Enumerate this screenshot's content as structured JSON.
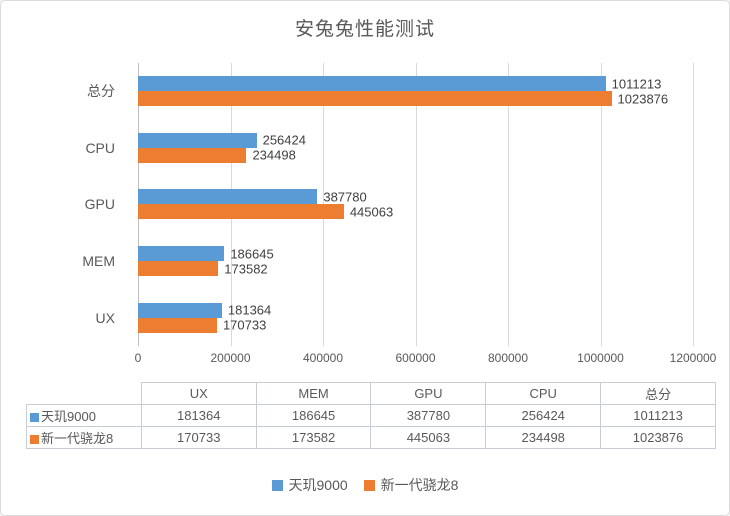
{
  "title": "安兔兔性能测试",
  "colors": {
    "series1": "#5B9BD5",
    "series2": "#ED7D31",
    "gridline": "#D9D9D9",
    "axis_text": "#595959",
    "data_label_text": "#404040",
    "table_border": "#C6CDD7"
  },
  "chart_data": {
    "type": "bar",
    "orientation": "horizontal",
    "title": "安兔兔性能测试",
    "categories": [
      "总分",
      "CPU",
      "GPU",
      "MEM",
      "UX"
    ],
    "series": [
      {
        "name": "天玑9000",
        "color": "#5B9BD5",
        "values": [
          1011213,
          256424,
          387780,
          186645,
          181364
        ]
      },
      {
        "name": "新一代骁龙8",
        "color": "#ED7D31",
        "values": [
          1023876,
          234498,
          445063,
          173582,
          170733
        ]
      }
    ],
    "xlim": [
      0,
      1200000
    ],
    "x_ticks": [
      "0",
      "200000",
      "400000",
      "600000",
      "800000",
      "1000000",
      "1200000"
    ],
    "grid": true,
    "data_labels": true,
    "legend_position": "bottom"
  },
  "table": {
    "columns": [
      "",
      "UX",
      "MEM",
      "GPU",
      "CPU",
      "总分"
    ],
    "rows": [
      {
        "label": "天玑9000",
        "marker_color": "#5B9BD5",
        "values": [
          "181364",
          "186645",
          "387780",
          "256424",
          "1011213"
        ]
      },
      {
        "label": "新一代骁龙8",
        "marker_color": "#ED7D31",
        "values": [
          "170733",
          "173582",
          "445063",
          "234498",
          "1023876"
        ]
      }
    ]
  },
  "legend": {
    "items": [
      {
        "label": "天玑9000",
        "color": "#5B9BD5"
      },
      {
        "label": "新一代骁龙8",
        "color": "#ED7D31"
      }
    ]
  }
}
